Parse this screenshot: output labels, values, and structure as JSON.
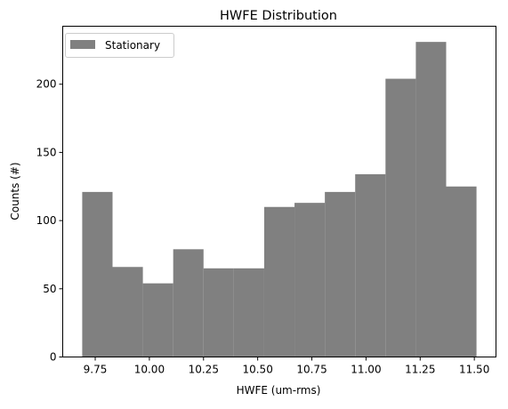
{
  "chart_data": {
    "type": "bar",
    "subtype": "histogram",
    "title": "HWFE Distribution",
    "xlabel": "HWFE (um-rms)",
    "ylabel": "Counts (#)",
    "bin_edges": [
      9.69,
      9.83,
      9.97,
      10.11,
      10.25,
      10.39,
      10.53,
      10.67,
      10.81,
      10.95,
      11.09,
      11.23,
      11.37,
      11.51
    ],
    "series": [
      {
        "name": "Stationary",
        "color": "#808080",
        "values": [
          121,
          66,
          54,
          79,
          65,
          65,
          110,
          113,
          121,
          134,
          204,
          231,
          125
        ]
      }
    ],
    "x_ticks": [
      9.75,
      10.0,
      10.25,
      10.5,
      10.75,
      11.0,
      11.25,
      11.5
    ],
    "x_tick_labels": [
      "9.75",
      "10.00",
      "10.25",
      "10.50",
      "10.75",
      "11.00",
      "11.25",
      "11.50"
    ],
    "y_ticks": [
      0,
      50,
      100,
      150,
      200
    ],
    "y_tick_labels": [
      "0",
      "50",
      "100",
      "150",
      "200"
    ],
    "xlim": [
      9.6,
      11.6
    ],
    "ylim": [
      0,
      242.5
    ],
    "grid": false,
    "legend_position": "upper-left"
  }
}
